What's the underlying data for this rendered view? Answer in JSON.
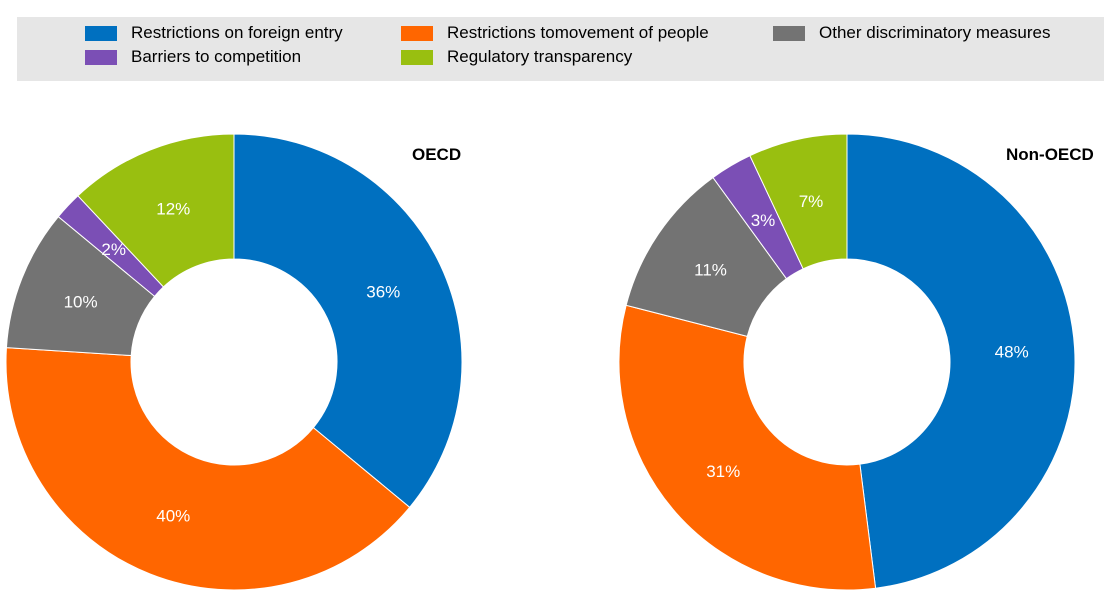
{
  "legend": {
    "items": [
      {
        "label": "Restrictions on foreign entry",
        "color": "#0070c0"
      },
      {
        "label": "Restrictions tomovement of people",
        "color": "#ff6600"
      },
      {
        "label": "Other discriminatory measures",
        "color": "#737373"
      },
      {
        "label": "Barriers to competition",
        "color": "#7b4fb5"
      },
      {
        "label": "Regulatory transparency",
        "color": "#99bf10"
      }
    ]
  },
  "chart_data": [
    {
      "type": "pie",
      "title": "OECD",
      "categories": [
        "Restrictions on foreign entry",
        "Restrictions tomovement of people",
        "Other discriminatory measures",
        "Barriers to competition",
        "Regulatory transparency"
      ],
      "values": [
        36,
        40,
        10,
        2,
        12
      ],
      "labels": [
        "36%",
        "40%",
        "10%",
        "2%",
        "12%"
      ],
      "colors": [
        "#0070c0",
        "#ff6600",
        "#737373",
        "#7b4fb5",
        "#99bf10"
      ]
    },
    {
      "type": "pie",
      "title": "Non-OECD",
      "categories": [
        "Restrictions on foreign entry",
        "Restrictions tomovement of people",
        "Other discriminatory measures",
        "Barriers to competition",
        "Regulatory transparency"
      ],
      "values": [
        48,
        31,
        11,
        3,
        7
      ],
      "labels": [
        "48%",
        "31%",
        "11%",
        "3%",
        "7%"
      ],
      "colors": [
        "#0070c0",
        "#ff6600",
        "#737373",
        "#7b4fb5",
        "#99bf10"
      ]
    }
  ]
}
